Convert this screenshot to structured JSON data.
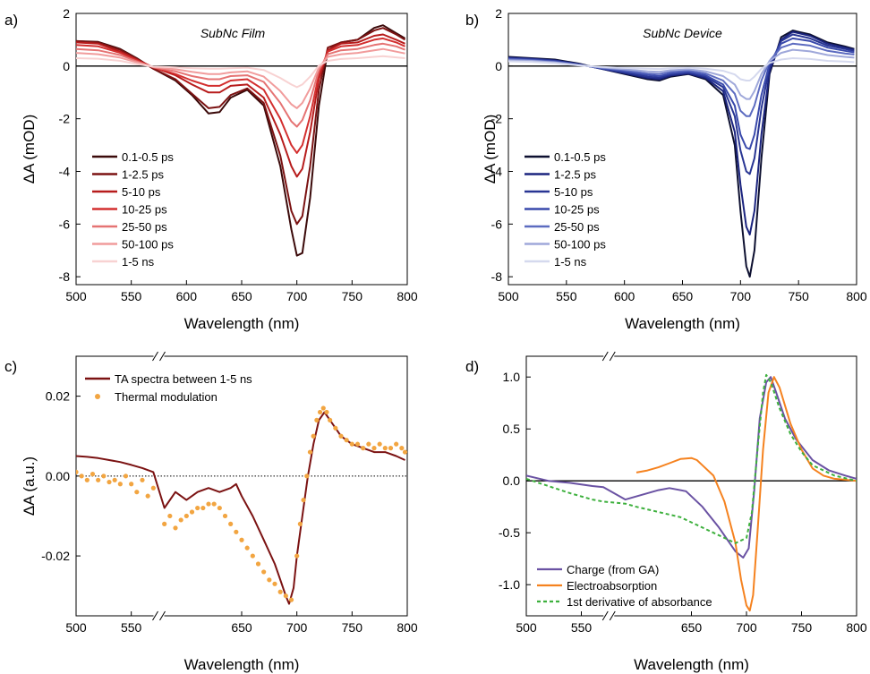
{
  "chart_data": [
    {
      "panel": "a)",
      "type": "line",
      "annotation": "SubNc Film",
      "xlabel": "Wavelength (nm)",
      "ylabel": "ΔA (mOD)",
      "xlim": [
        500,
        800
      ],
      "ylim": [
        -8.3,
        2
      ],
      "xticks": [
        500,
        550,
        600,
        650,
        700,
        750,
        800
      ],
      "yticks": [
        2,
        0,
        -2,
        -4,
        -6,
        -8
      ],
      "zero_line": "solid",
      "legend_placement": "lower-left",
      "x": [
        500,
        520,
        540,
        555,
        570,
        590,
        605,
        620,
        630,
        640,
        655,
        670,
        685,
        695,
        700,
        705,
        712,
        720,
        728,
        740,
        755,
        770,
        778,
        790,
        798
      ],
      "series": [
        {
          "name": "0.1-0.5 ps",
          "color": "#3b0a0a",
          "values": [
            0.95,
            0.92,
            0.65,
            0.3,
            -0.1,
            -0.55,
            -1.1,
            -1.8,
            -1.75,
            -1.2,
            -0.9,
            -1.5,
            -3.8,
            -6.2,
            -7.2,
            -7.1,
            -5.0,
            -1.5,
            0.6,
            0.9,
            1.0,
            1.45,
            1.55,
            1.25,
            1.05
          ]
        },
        {
          "name": "1-2.5 ps",
          "color": "#7b1212",
          "values": [
            0.95,
            0.9,
            0.62,
            0.28,
            -0.1,
            -0.5,
            -1.05,
            -1.6,
            -1.55,
            -1.1,
            -0.85,
            -1.4,
            -3.4,
            -5.5,
            -6.0,
            -5.7,
            -3.8,
            -0.9,
            0.7,
            0.9,
            1.0,
            1.35,
            1.45,
            1.2,
            1.0
          ]
        },
        {
          "name": "5-10 ps",
          "color": "#b71c1c",
          "values": [
            0.9,
            0.85,
            0.55,
            0.25,
            -0.05,
            -0.35,
            -0.7,
            -1.0,
            -1.0,
            -0.75,
            -0.7,
            -1.2,
            -2.6,
            -3.8,
            -4.2,
            -3.9,
            -2.5,
            -0.5,
            0.6,
            0.85,
            0.9,
            1.15,
            1.2,
            1.0,
            0.85
          ]
        },
        {
          "name": "10-25 ps",
          "color": "#d32f2f",
          "values": [
            0.8,
            0.75,
            0.5,
            0.22,
            -0.05,
            -0.3,
            -0.55,
            -0.75,
            -0.75,
            -0.55,
            -0.5,
            -0.9,
            -2.0,
            -3.0,
            -3.3,
            -3.0,
            -1.9,
            -0.3,
            0.55,
            0.75,
            0.8,
            1.0,
            1.05,
            0.9,
            0.75
          ]
        },
        {
          "name": "25-50 ps",
          "color": "#e57373",
          "values": [
            0.65,
            0.6,
            0.42,
            0.18,
            -0.05,
            -0.2,
            -0.38,
            -0.5,
            -0.5,
            -0.38,
            -0.35,
            -0.6,
            -1.4,
            -2.1,
            -2.3,
            -2.05,
            -1.3,
            -0.15,
            0.45,
            0.6,
            0.65,
            0.8,
            0.85,
            0.75,
            0.62
          ]
        },
        {
          "name": "50-100 ps",
          "color": "#f19c9c",
          "values": [
            0.5,
            0.45,
            0.32,
            0.14,
            -0.03,
            -0.12,
            -0.22,
            -0.3,
            -0.3,
            -0.24,
            -0.2,
            -0.4,
            -0.95,
            -1.45,
            -1.6,
            -1.4,
            -0.85,
            -0.05,
            0.35,
            0.45,
            0.5,
            0.6,
            0.65,
            0.55,
            0.48
          ]
        },
        {
          "name": "1-5 ns",
          "color": "#f8d2d2",
          "values": [
            0.3,
            0.28,
            0.2,
            0.08,
            -0.02,
            -0.05,
            -0.08,
            -0.1,
            -0.1,
            -0.08,
            -0.06,
            -0.15,
            -0.45,
            -0.7,
            -0.8,
            -0.7,
            -0.4,
            0.02,
            0.2,
            0.27,
            0.3,
            0.35,
            0.38,
            0.33,
            0.3
          ]
        }
      ]
    },
    {
      "panel": "b)",
      "type": "line",
      "annotation": "SubNc Device",
      "xlabel": "Wavelength (nm)",
      "ylabel": "ΔA (mOD)",
      "xlim": [
        500,
        800
      ],
      "ylim": [
        -8.3,
        2
      ],
      "xticks": [
        500,
        550,
        600,
        650,
        700,
        750,
        800
      ],
      "yticks": [
        2,
        0,
        -2,
        -4,
        -6,
        -8
      ],
      "zero_line": "solid",
      "legend_placement": "lower-left",
      "x": [
        500,
        520,
        540,
        560,
        580,
        600,
        620,
        630,
        640,
        655,
        670,
        685,
        695,
        700,
        705,
        708,
        712,
        718,
        725,
        735,
        745,
        760,
        775,
        790,
        798
      ],
      "series": [
        {
          "name": "0.1-0.5 ps",
          "color": "#0d1030",
          "values": [
            0.35,
            0.3,
            0.25,
            0.1,
            -0.1,
            -0.3,
            -0.5,
            -0.55,
            -0.4,
            -0.3,
            -0.5,
            -1.1,
            -3.0,
            -5.5,
            -7.6,
            -8.0,
            -7.0,
            -3.5,
            -0.3,
            1.1,
            1.35,
            1.2,
            0.9,
            0.75,
            0.65
          ]
        },
        {
          "name": "1-2.5 ps",
          "color": "#1a237e",
          "values": [
            0.32,
            0.28,
            0.22,
            0.08,
            -0.1,
            -0.27,
            -0.45,
            -0.5,
            -0.36,
            -0.28,
            -0.45,
            -0.95,
            -2.5,
            -4.5,
            -6.1,
            -6.4,
            -5.5,
            -2.6,
            -0.2,
            1.0,
            1.3,
            1.15,
            0.85,
            0.7,
            0.62
          ]
        },
        {
          "name": "5-10 ps",
          "color": "#283593",
          "values": [
            0.3,
            0.26,
            0.2,
            0.07,
            -0.09,
            -0.24,
            -0.4,
            -0.44,
            -0.32,
            -0.25,
            -0.4,
            -0.8,
            -1.9,
            -3.2,
            -4.0,
            -4.1,
            -3.5,
            -1.6,
            0.0,
            0.95,
            1.2,
            1.05,
            0.78,
            0.65,
            0.58
          ]
        },
        {
          "name": "10-25 ps",
          "color": "#3949ab",
          "values": [
            0.28,
            0.24,
            0.18,
            0.06,
            -0.08,
            -0.2,
            -0.34,
            -0.38,
            -0.28,
            -0.22,
            -0.35,
            -0.7,
            -1.5,
            -2.6,
            -3.1,
            -3.15,
            -2.6,
            -1.1,
            0.1,
            0.85,
            1.05,
            0.95,
            0.7,
            0.58,
            0.52
          ]
        },
        {
          "name": "25-50 ps",
          "color": "#5c6bc0",
          "values": [
            0.26,
            0.22,
            0.16,
            0.05,
            -0.07,
            -0.16,
            -0.28,
            -0.3,
            -0.22,
            -0.17,
            -0.28,
            -0.55,
            -1.05,
            -1.7,
            -1.9,
            -1.9,
            -1.5,
            -0.55,
            0.2,
            0.7,
            0.85,
            0.78,
            0.58,
            0.48,
            0.44
          ]
        },
        {
          "name": "50-100 ps",
          "color": "#9fa8da",
          "values": [
            0.22,
            0.2,
            0.14,
            0.04,
            -0.05,
            -0.12,
            -0.2,
            -0.22,
            -0.16,
            -0.12,
            -0.2,
            -0.38,
            -0.7,
            -1.1,
            -1.25,
            -1.25,
            -0.95,
            -0.3,
            0.2,
            0.5,
            0.62,
            0.56,
            0.42,
            0.35,
            0.32
          ]
        },
        {
          "name": "1-5 ns",
          "color": "#d5d9ee",
          "values": [
            0.18,
            0.16,
            0.11,
            0.03,
            -0.03,
            -0.07,
            -0.1,
            -0.11,
            -0.08,
            -0.06,
            -0.1,
            -0.18,
            -0.32,
            -0.5,
            -0.55,
            -0.55,
            -0.4,
            -0.1,
            0.12,
            0.25,
            0.3,
            0.27,
            0.2,
            0.17,
            0.15
          ]
        }
      ]
    },
    {
      "panel": "c)",
      "type": "line+scatter",
      "xlabel": "Wavelength (nm)",
      "ylabel": "ΔA (a.u.)",
      "xlim": [
        500,
        800
      ],
      "ylim": [
        -0.035,
        0.03
      ],
      "xticks": [
        500,
        550,
        650,
        700,
        750,
        800
      ],
      "yticks": [
        0.02,
        0.0,
        -0.02
      ],
      "ytick_labels": [
        "0.02",
        "0.00",
        "-0.02"
      ],
      "axis_break_at": 575,
      "zero_line": "dotted",
      "legend_placement": "top-left",
      "series": [
        {
          "name": "TA spectra between 1-5 ns",
          "kind": "line",
          "color": "#7b1212",
          "x": [
            500,
            510,
            520,
            530,
            540,
            550,
            560,
            570,
            580,
            590,
            600,
            610,
            620,
            630,
            640,
            645,
            650,
            660,
            670,
            680,
            685,
            690,
            693,
            697,
            700,
            705,
            710,
            715,
            720,
            725,
            730,
            740,
            750,
            760,
            770,
            780,
            790,
            798
          ],
          "values": [
            0.005,
            0.0048,
            0.0045,
            0.004,
            0.0035,
            0.0028,
            0.002,
            0.001,
            -0.008,
            -0.004,
            -0.006,
            -0.004,
            -0.003,
            -0.004,
            -0.003,
            -0.002,
            -0.005,
            -0.01,
            -0.016,
            -0.022,
            -0.026,
            -0.03,
            -0.032,
            -0.028,
            -0.02,
            -0.01,
            0.0,
            0.008,
            0.014,
            0.016,
            0.014,
            0.01,
            0.008,
            0.007,
            0.006,
            0.006,
            0.005,
            0.004
          ]
        },
        {
          "name": "Thermal modulation",
          "kind": "scatter",
          "color": "#f2a541",
          "x": [
            500,
            505,
            510,
            515,
            520,
            525,
            530,
            535,
            540,
            545,
            550,
            555,
            560,
            565,
            570,
            580,
            585,
            590,
            595,
            600,
            605,
            610,
            615,
            620,
            625,
            630,
            635,
            640,
            645,
            650,
            655,
            660,
            665,
            670,
            675,
            680,
            685,
            690,
            695,
            700,
            703,
            706,
            709,
            712,
            715,
            718,
            721,
            724,
            727,
            730,
            735,
            740,
            745,
            750,
            755,
            760,
            765,
            770,
            775,
            780,
            785,
            790,
            795,
            798
          ],
          "values": [
            0.001,
            0.0,
            -0.001,
            0.0005,
            -0.001,
            0.0,
            -0.0015,
            -0.001,
            -0.002,
            0.0,
            -0.002,
            -0.004,
            -0.001,
            -0.005,
            -0.003,
            -0.012,
            -0.01,
            -0.013,
            -0.011,
            -0.01,
            -0.009,
            -0.008,
            -0.008,
            -0.007,
            -0.007,
            -0.008,
            -0.01,
            -0.012,
            -0.014,
            -0.016,
            -0.018,
            -0.02,
            -0.022,
            -0.024,
            -0.026,
            -0.027,
            -0.029,
            -0.03,
            -0.031,
            -0.02,
            -0.012,
            -0.006,
            0.0,
            0.006,
            0.01,
            0.014,
            0.016,
            0.017,
            0.016,
            0.014,
            0.012,
            0.01,
            0.009,
            0.008,
            0.008,
            0.007,
            0.008,
            0.007,
            0.008,
            0.007,
            0.007,
            0.008,
            0.007,
            0.006
          ]
        }
      ]
    },
    {
      "panel": "d)",
      "type": "line",
      "xlabel": "Wavelength (nm)",
      "ylabel": "",
      "xlim": [
        500,
        800
      ],
      "ylim": [
        -1.3,
        1.2
      ],
      "xticks": [
        500,
        550,
        650,
        700,
        750,
        800
      ],
      "yticks": [
        1.0,
        0.5,
        0.0,
        -0.5,
        -1.0
      ],
      "ytick_labels": [
        "1.0",
        "0.5",
        "0.0",
        "-0.5",
        "-1.0"
      ],
      "axis_break_at": 575,
      "zero_line": "solid",
      "legend_placement": "bottom-left",
      "series": [
        {
          "name": "Charge (from GA)",
          "color": "#6a52a3",
          "dash": "none",
          "x": [
            500,
            520,
            540,
            560,
            570,
            590,
            600,
            610,
            620,
            630,
            645,
            660,
            675,
            690,
            697,
            702,
            707,
            712,
            718,
            722,
            727,
            735,
            745,
            760,
            775,
            790,
            800
          ],
          "values": [
            0.05,
            0.0,
            -0.02,
            -0.05,
            -0.06,
            -0.18,
            -0.15,
            -0.12,
            -0.09,
            -0.07,
            -0.1,
            -0.25,
            -0.45,
            -0.68,
            -0.74,
            -0.65,
            -0.1,
            0.6,
            0.95,
            1.0,
            0.85,
            0.6,
            0.4,
            0.2,
            0.1,
            0.05,
            0.02
          ]
        },
        {
          "name": "Electroabsorption",
          "color": "#f5821f",
          "dash": "none",
          "x": [
            600,
            610,
            620,
            630,
            640,
            650,
            655,
            660,
            670,
            680,
            690,
            695,
            700,
            703,
            706,
            710,
            715,
            720,
            725,
            730,
            740,
            750,
            760,
            770,
            780,
            790,
            800
          ],
          "values": [
            0.08,
            0.1,
            0.13,
            0.17,
            0.21,
            0.22,
            0.2,
            0.15,
            0.05,
            -0.2,
            -0.6,
            -0.95,
            -1.2,
            -1.25,
            -1.1,
            -0.5,
            0.3,
            0.85,
            1.0,
            0.9,
            0.55,
            0.3,
            0.12,
            0.05,
            0.02,
            0.01,
            0.0
          ]
        },
        {
          "name": "1st derivative of absorbance",
          "color": "#3db03d",
          "dash": "4,3",
          "x": [
            500,
            520,
            540,
            560,
            570,
            590,
            600,
            620,
            640,
            660,
            680,
            690,
            700,
            705,
            710,
            715,
            718,
            722,
            730,
            740,
            750,
            760,
            780,
            800
          ],
          "values": [
            0.02,
            -0.05,
            -0.12,
            -0.18,
            -0.2,
            -0.22,
            -0.25,
            -0.3,
            -0.35,
            -0.45,
            -0.55,
            -0.6,
            -0.55,
            -0.3,
            0.3,
            0.85,
            1.02,
            0.95,
            0.7,
            0.45,
            0.28,
            0.15,
            0.05,
            0.0
          ]
        }
      ]
    }
  ]
}
